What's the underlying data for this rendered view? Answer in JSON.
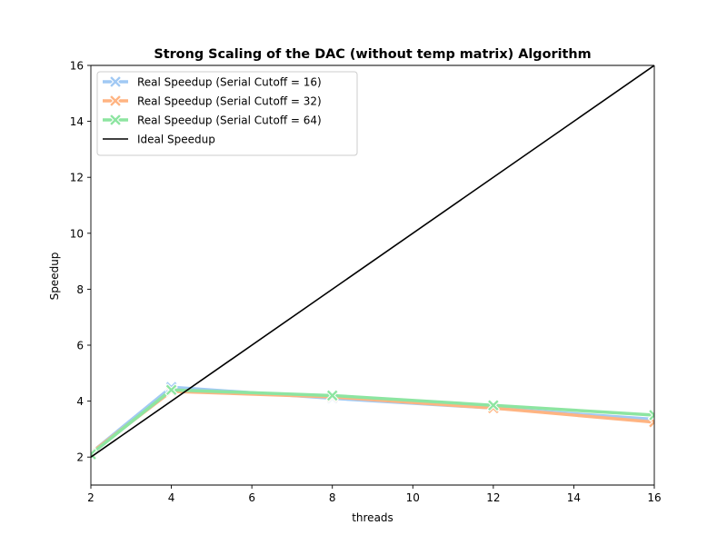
{
  "chart_data": {
    "type": "line",
    "title": "Strong Scaling of the DAC (without temp matrix) Algorithm",
    "xlabel": "threads",
    "ylabel": "Speedup",
    "xlim": [
      2,
      16
    ],
    "ylim": [
      1,
      16
    ],
    "xticks": [
      2,
      4,
      6,
      8,
      10,
      12,
      14,
      16
    ],
    "yticks": [
      2,
      4,
      6,
      8,
      10,
      12,
      14,
      16
    ],
    "grid": false,
    "legend_position": "upper-left",
    "series": [
      {
        "name": "Real Speedup (Serial Cutoff = 16)",
        "color": "#a1c9f4",
        "marker": "X",
        "x": [
          2,
          4,
          8,
          12,
          16
        ],
        "values": [
          2.15,
          4.5,
          4.1,
          3.75,
          3.35
        ]
      },
      {
        "name": "Real Speedup (Serial Cutoff = 32)",
        "color": "#ffb482",
        "marker": "X",
        "x": [
          2,
          4,
          8,
          12,
          16
        ],
        "values": [
          2.15,
          4.35,
          4.15,
          3.75,
          3.25
        ]
      },
      {
        "name": "Real Speedup (Serial Cutoff = 64)",
        "color": "#8de5a1",
        "marker": "X",
        "x": [
          2,
          4,
          8,
          12,
          16
        ],
        "values": [
          2.1,
          4.4,
          4.2,
          3.85,
          3.5
        ]
      },
      {
        "name": "Ideal Speedup",
        "color": "#000000",
        "marker": "none",
        "x": [
          2,
          16
        ],
        "values": [
          2,
          16
        ]
      }
    ]
  }
}
